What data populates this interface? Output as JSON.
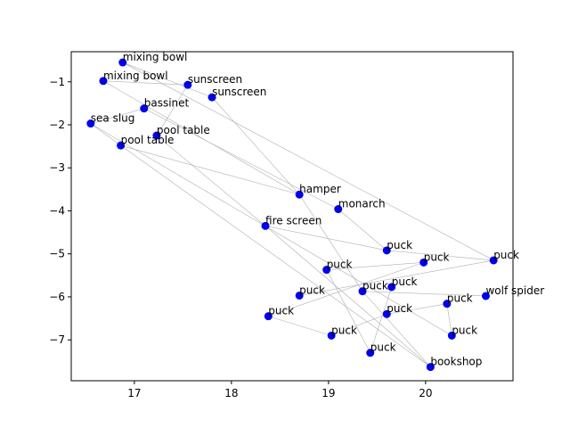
{
  "chart_data": {
    "type": "scatter",
    "title": "",
    "xlabel": "",
    "ylabel": "",
    "xlim": [
      16.35,
      20.9
    ],
    "ylim": [
      -7.95,
      -0.3
    ],
    "xticks": [
      17,
      18,
      19,
      20
    ],
    "yticks": [
      -1,
      -2,
      -3,
      -4,
      -5,
      -6,
      -7
    ],
    "xtick_labels": [
      "17",
      "18",
      "19",
      "20"
    ],
    "ytick_labels": [
      "−1",
      "−2",
      "−3",
      "−4",
      "−5",
      "−6",
      "−7"
    ],
    "grid": false,
    "point_color": "#0000ee",
    "edge_color": "#b0b0b0",
    "points": [
      {
        "label": "mixing bowl",
        "x": 16.88,
        "y": -0.55
      },
      {
        "label": "mixing bowl",
        "x": 16.68,
        "y": -0.98
      },
      {
        "label": "sunscreen",
        "x": 17.55,
        "y": -1.07
      },
      {
        "label": "sunscreen",
        "x": 17.8,
        "y": -1.36
      },
      {
        "label": "bassinet",
        "x": 17.1,
        "y": -1.62
      },
      {
        "label": "sea slug",
        "x": 16.55,
        "y": -1.97
      },
      {
        "label": "pool table",
        "x": 17.23,
        "y": -2.25
      },
      {
        "label": "pool table",
        "x": 16.86,
        "y": -2.48
      },
      {
        "label": "hamper",
        "x": 18.7,
        "y": -3.62
      },
      {
        "label": "monarch",
        "x": 19.1,
        "y": -3.96
      },
      {
        "label": "fire screen",
        "x": 18.35,
        "y": -4.35
      },
      {
        "label": "puck",
        "x": 19.6,
        "y": -4.92
      },
      {
        "label": "puck",
        "x": 20.7,
        "y": -5.15
      },
      {
        "label": "puck",
        "x": 19.98,
        "y": -5.2
      },
      {
        "label": "puck",
        "x": 18.98,
        "y": -5.37
      },
      {
        "label": "puck",
        "x": 19.65,
        "y": -5.77
      },
      {
        "label": "puck",
        "x": 19.35,
        "y": -5.87
      },
      {
        "label": "puck",
        "x": 18.7,
        "y": -5.97
      },
      {
        "label": "wolf spider",
        "x": 20.62,
        "y": -5.98
      },
      {
        "label": "puck",
        "x": 20.22,
        "y": -6.16
      },
      {
        "label": "puck",
        "x": 19.6,
        "y": -6.4
      },
      {
        "label": "puck",
        "x": 18.38,
        "y": -6.45
      },
      {
        "label": "puck",
        "x": 20.27,
        "y": -6.9
      },
      {
        "label": "puck",
        "x": 19.03,
        "y": -6.9
      },
      {
        "label": "puck",
        "x": 19.43,
        "y": -7.3
      },
      {
        "label": "bookshop",
        "x": 20.05,
        "y": -7.63
      }
    ],
    "edges": [
      [
        0,
        3
      ],
      [
        0,
        12
      ],
      [
        1,
        2
      ],
      [
        1,
        8
      ],
      [
        2,
        6
      ],
      [
        3,
        8
      ],
      [
        4,
        5
      ],
      [
        4,
        9
      ],
      [
        5,
        7
      ],
      [
        5,
        22
      ],
      [
        6,
        10
      ],
      [
        7,
        8
      ],
      [
        7,
        25
      ],
      [
        8,
        16
      ],
      [
        9,
        11
      ],
      [
        10,
        11
      ],
      [
        10,
        25
      ],
      [
        11,
        12
      ],
      [
        12,
        17
      ],
      [
        13,
        14
      ],
      [
        13,
        21
      ],
      [
        15,
        24
      ],
      [
        16,
        18
      ],
      [
        16,
        25
      ],
      [
        19,
        20
      ],
      [
        19,
        22
      ],
      [
        20,
        23
      ],
      [
        21,
        23
      ],
      [
        24,
        14
      ]
    ]
  }
}
